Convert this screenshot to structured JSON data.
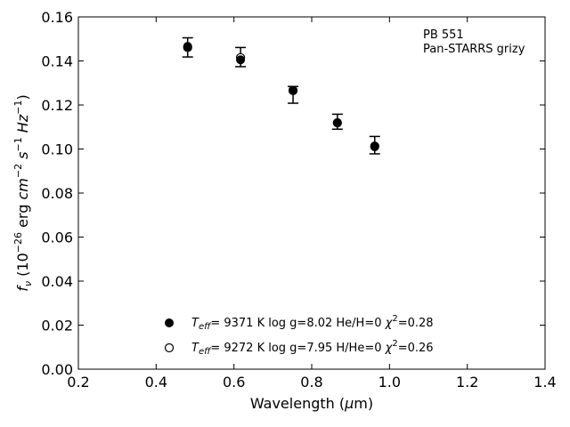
{
  "chart_data": {
    "type": "scatter",
    "title": "",
    "xlabel": "Wavelength (μm)",
    "xlabel_parts": {
      "before": "Wavelength (",
      "mu": "μ",
      "after": "m)"
    },
    "ylabel": "f_ν (10^-26 erg cm^-2 s^-1 Hz^-1)",
    "ylabel_parts": {
      "f": "f",
      "nu": "ν",
      "open": " (10",
      "exp26": "−26",
      "erg": " erg ",
      "cm": "cm",
      "exp2": "−2",
      "s": " s",
      "exp1a": "−1",
      "hz": " Hz",
      "exp1b": "−1",
      "close": ")"
    },
    "xlim": [
      0.2,
      1.4
    ],
    "ylim": [
      0.0,
      0.16
    ],
    "xticks": [
      0.2,
      0.4,
      0.6,
      0.8,
      1.0,
      1.2,
      1.4
    ],
    "xtick_labels": [
      "0.2",
      "0.4",
      "0.6",
      "0.8",
      "1.0",
      "1.2",
      "1.4"
    ],
    "yticks": [
      0.0,
      0.02,
      0.04,
      0.06,
      0.08,
      0.1,
      0.12,
      0.14,
      0.16
    ],
    "ytick_labels": [
      "0.00",
      "0.02",
      "0.04",
      "0.06",
      "0.08",
      "0.10",
      "0.12",
      "0.14",
      "0.16"
    ],
    "grid": false,
    "annotation": [
      "PB 551",
      "Pan-STARRS grizy"
    ],
    "annotation_placement": "top-right",
    "legend_placement": "bottom-center",
    "observed": {
      "x": [
        0.481,
        0.617,
        0.752,
        0.866,
        0.962
      ],
      "y": [
        0.146,
        0.141,
        0.1245,
        0.1122,
        0.1015
      ],
      "yerr_low": [
        0.1418,
        0.1374,
        0.1208,
        0.109,
        0.0978
      ],
      "yerr_high": [
        0.1505,
        0.1461,
        0.1284,
        0.1158,
        0.1057
      ]
    },
    "series": [
      {
        "marker": "filled-circle",
        "legend": {
          "teff": "T",
          "teff_sub": "eff",
          "text1": "=  9371 K  log g=8.02  He/H=0  ",
          "chi": "χ",
          "chi_sup": "2",
          "text2": "=0.28"
        },
        "x": [
          0.481,
          0.617,
          0.752,
          0.866,
          0.962
        ],
        "y": [
          0.1466,
          0.1405,
          0.1267,
          0.1119,
          0.101
        ]
      },
      {
        "marker": "open-circle",
        "legend": {
          "teff": "T",
          "teff_sub": "eff",
          "text1": "=  9272 K  log g=7.95  H/He=0  ",
          "chi": "χ",
          "chi_sup": "2",
          "text2": "=0.26"
        },
        "x": [
          0.481,
          0.617,
          0.752,
          0.866,
          0.962
        ],
        "y": [
          0.1461,
          0.1415,
          0.1265,
          0.1119,
          0.1013
        ]
      }
    ],
    "colors": {
      "marker": "#000000",
      "axis": "#000000",
      "background": "#ffffff"
    }
  }
}
